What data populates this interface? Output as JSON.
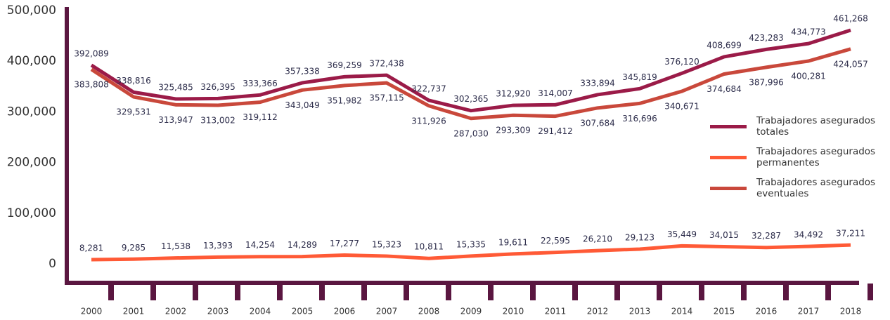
{
  "chart_data": {
    "type": "line",
    "categories": [
      "2000",
      "2001",
      "2002",
      "2003",
      "2004",
      "2005",
      "2006",
      "2007",
      "2008",
      "2009",
      "2010",
      "2011",
      "2012",
      "2013",
      "2014",
      "2015",
      "2016",
      "2017",
      "2018"
    ],
    "series": [
      {
        "name": "Trabajadores asegurados totales",
        "color": "#9b1b48",
        "values": [
          392089,
          338816,
          325485,
          326395,
          333366,
          357338,
          369259,
          372438,
          322737,
          302365,
          312920,
          314007,
          333894,
          345819,
          376120,
          408699,
          423283,
          434773,
          461268
        ],
        "value_labels": [
          "392,089",
          "338,816",
          "325,485",
          "326,395",
          "333,366",
          "357,338",
          "369,259",
          "372,438",
          "322,737",
          "302,365",
          "312,920",
          "314,007",
          "333,894",
          "345,819",
          "376,120",
          "408,699",
          "423,283",
          "434,773",
          "461,268"
        ]
      },
      {
        "name": "Trabajadores asegurados permanentes",
        "color": "#ff5a36",
        "values": [
          8281,
          9285,
          11538,
          13393,
          14254,
          14289,
          17277,
          15323,
          10811,
          15335,
          19611,
          22595,
          26210,
          29123,
          35449,
          34015,
          32287,
          34492,
          37211
        ],
        "value_labels": [
          "8,281",
          "9,285",
          "11,538",
          "13,393",
          "14,254",
          "14,289",
          "17,277",
          "15,323",
          "10,811",
          "15,335",
          "19,611",
          "22,595",
          "26,210",
          "29,123",
          "35,449",
          "34,015",
          "32,287",
          "34,492",
          "37,211"
        ]
      },
      {
        "name": "Trabajadores asegurados eventuales",
        "color": "#c9483b",
        "values": [
          383808,
          329531,
          313947,
          313002,
          319112,
          343049,
          351982,
          357115,
          311926,
          287030,
          293309,
          291412,
          307684,
          316696,
          340671,
          374684,
          387996,
          400281,
          424057
        ],
        "value_labels": [
          "383,808",
          "329,531",
          "313,947",
          "313,002",
          "319,112",
          "343,049",
          "351,982",
          "357,115",
          "311,926",
          "287,030",
          "293,309",
          "291,412",
          "307,684",
          "316,696",
          "340,671",
          "374,684",
          "387,996",
          "400,281",
          "424,057"
        ]
      }
    ],
    "ylim": [
      0,
      500000
    ],
    "yticks": [
      {
        "value": 0,
        "label": "0"
      },
      {
        "value": 100000,
        "label": "100,000"
      },
      {
        "value": 200000,
        "label": "200,000"
      },
      {
        "value": 300000,
        "label": "300,000"
      },
      {
        "value": 400000,
        "label": "400,000"
      },
      {
        "value": 500000,
        "label": "500,000"
      }
    ]
  }
}
